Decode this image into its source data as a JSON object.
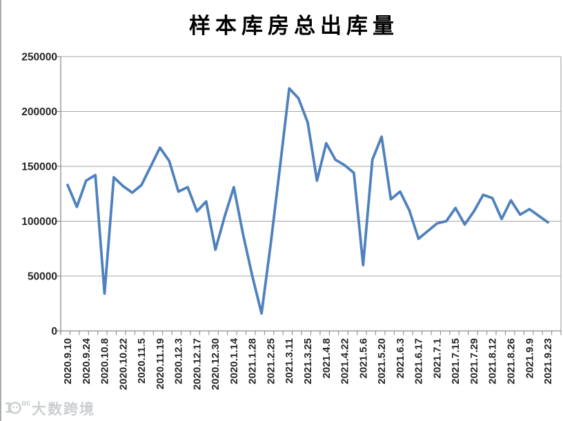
{
  "page": {
    "background": "#ffffff"
  },
  "chart_data": {
    "type": "line",
    "title": "样本库房总出库量",
    "x_labels": [
      "2020.9.10",
      "2020.9.24",
      "2020.10.8",
      "2020.10.22",
      "2020.11.5",
      "2020.11.19",
      "2020.12.3",
      "2020.12.17",
      "2020.12.30",
      "2020.1.14",
      "2021.1.28",
      "2021.2.25",
      "2021.3.11",
      "2021.3.25",
      "2021.4.8",
      "2021.4.22",
      "2021.5.6",
      "2021.5.20",
      "2021.6.3",
      "2021.6.17",
      "2021.7.1",
      "2021.7.15",
      "2021.7.29",
      "2021.8.12",
      "2021.8.26",
      "2021.9.9",
      "2021.9.23"
    ],
    "x_label_every_n_points": 2,
    "values": [
      133000,
      113000,
      137000,
      142000,
      34000,
      140000,
      132000,
      126000,
      133000,
      150000,
      167000,
      155000,
      127000,
      131000,
      109000,
      118000,
      74000,
      104000,
      131000,
      88000,
      50000,
      16000,
      80000,
      150000,
      221000,
      212000,
      190000,
      137000,
      171000,
      156000,
      151000,
      144000,
      60000,
      156000,
      177000,
      120000,
      127000,
      110000,
      84000,
      91000,
      98000,
      100000,
      112000,
      97000,
      109000,
      124000,
      121000,
      102000,
      119000,
      106000,
      111000,
      105000,
      99000
    ],
    "y_ticks": [
      0,
      50000,
      100000,
      150000,
      200000,
      250000
    ],
    "ylim": [
      0,
      250000
    ],
    "grid": "horizontal-only",
    "legend_position": "none",
    "line_color": "#4F81BD",
    "grid_color": "#A6A6A6",
    "axis_color": "#8C8C8C",
    "label_color": "#262626"
  },
  "watermark": {
    "text": "大数跨境",
    "color": "#C6CACD"
  }
}
